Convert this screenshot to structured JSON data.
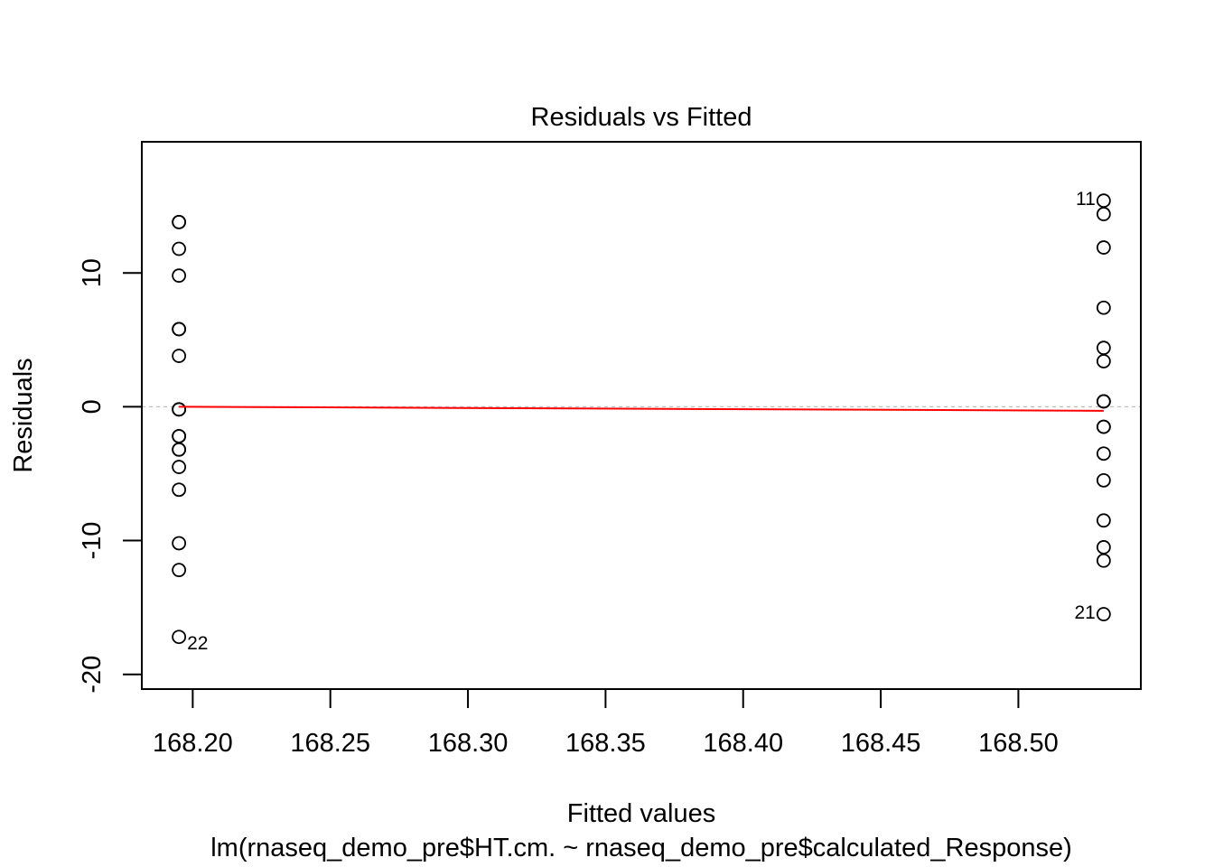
{
  "chart_data": {
    "type": "scatter",
    "title": "Residuals vs Fitted",
    "xlabel": "Fitted values",
    "subtitle": "lm(rnaseq_demo_pre$HT.cm. ~ rnaseq_demo_pre$calculated_Response)",
    "ylabel": "Residuals",
    "xlim": [
      168.1815,
      168.5445
    ],
    "ylim": [
      -21.1,
      19.8
    ],
    "x_ticks": [
      168.2,
      168.25,
      168.3,
      168.35,
      168.4,
      168.45,
      168.5
    ],
    "x_tick_labels": [
      "168.20",
      "168.25",
      "168.30",
      "168.35",
      "168.40",
      "168.45",
      "168.50"
    ],
    "y_ticks": [
      -20,
      -10,
      0,
      10
    ],
    "y_tick_labels": [
      "-20",
      "-10",
      "0",
      "10"
    ],
    "grid": false,
    "zero_line": 0,
    "points": [
      {
        "x": 168.195,
        "y": 13.8
      },
      {
        "x": 168.195,
        "y": 13.8
      },
      {
        "x": 168.195,
        "y": 11.8
      },
      {
        "x": 168.195,
        "y": 9.8
      },
      {
        "x": 168.195,
        "y": 5.8
      },
      {
        "x": 168.195,
        "y": 5.8
      },
      {
        "x": 168.195,
        "y": 3.8
      },
      {
        "x": 168.195,
        "y": -0.2
      },
      {
        "x": 168.195,
        "y": -0.2
      },
      {
        "x": 168.195,
        "y": -2.2
      },
      {
        "x": 168.195,
        "y": -2.2
      },
      {
        "x": 168.195,
        "y": -3.2
      },
      {
        "x": 168.195,
        "y": -3.2
      },
      {
        "x": 168.195,
        "y": -4.5
      },
      {
        "x": 168.195,
        "y": -6.2
      },
      {
        "x": 168.195,
        "y": -10.2
      },
      {
        "x": 168.195,
        "y": -12.2
      },
      {
        "x": 168.195,
        "y": -17.2,
        "label": "22",
        "label_side": "right"
      },
      {
        "x": 168.531,
        "y": 15.4,
        "label": "11",
        "label_side": "left"
      },
      {
        "x": 168.531,
        "y": 14.4
      },
      {
        "x": 168.531,
        "y": 11.9
      },
      {
        "x": 168.531,
        "y": 7.4
      },
      {
        "x": 168.531,
        "y": 4.4
      },
      {
        "x": 168.531,
        "y": 3.4
      },
      {
        "x": 168.531,
        "y": 0.4
      },
      {
        "x": 168.531,
        "y": 0.4
      },
      {
        "x": 168.531,
        "y": -1.5
      },
      {
        "x": 168.531,
        "y": -1.5
      },
      {
        "x": 168.531,
        "y": -3.5
      },
      {
        "x": 168.531,
        "y": -5.5
      },
      {
        "x": 168.531,
        "y": -8.5
      },
      {
        "x": 168.531,
        "y": -10.5
      },
      {
        "x": 168.531,
        "y": -11.5
      },
      {
        "x": 168.531,
        "y": -15.5,
        "label": "21",
        "label_side": "left"
      }
    ],
    "smooth_line": {
      "color": "#ff0000",
      "points": [
        [
          168.195,
          0.0
        ],
        [
          168.531,
          -0.3
        ]
      ]
    },
    "colors": {
      "points": "#000000",
      "smooth": "#ff0000",
      "zero_line": "#bebebe"
    }
  }
}
